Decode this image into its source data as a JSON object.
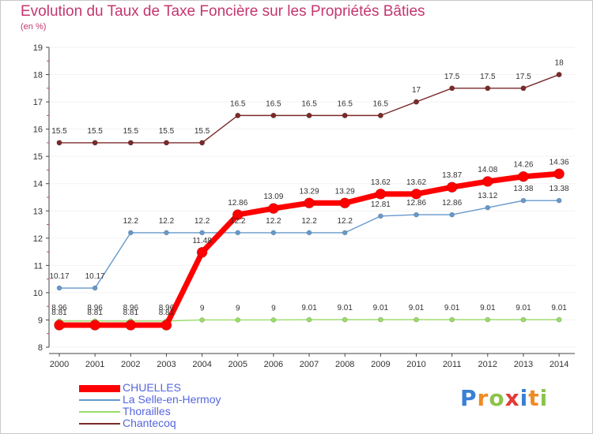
{
  "chart_data": {
    "type": "line",
    "title": "Evolution du Taux de Taxe Foncière sur les Propriétés Bâties",
    "subtitle": "(en %)",
    "xlabel": "",
    "ylabel": "",
    "ylim": [
      8,
      19
    ],
    "yticks": [
      "8",
      "9",
      "10",
      "11",
      "12",
      "13",
      "14",
      "15",
      "16",
      "17",
      "18",
      "19"
    ],
    "categories": [
      "2000",
      "2001",
      "2002",
      "2003",
      "2004",
      "2005",
      "2006",
      "2007",
      "2008",
      "2009",
      "2010",
      "2011",
      "2012",
      "2013",
      "2014"
    ],
    "legend_position": "bottom-left",
    "series": [
      {
        "name": "CHUELLES",
        "color": "#ff0000",
        "values": [
          8.81,
          8.81,
          8.81,
          8.81,
          11.48,
          12.86,
          13.09,
          13.29,
          13.29,
          13.62,
          13.62,
          13.87,
          14.08,
          14.26,
          14.36
        ],
        "labels": [
          "8.81",
          "8.81",
          "8.81",
          "8.81",
          "11.48",
          "12.86",
          "13.09",
          "13.29",
          "13.29",
          "13.62",
          "13.62",
          "13.87",
          "14.08",
          "14.26",
          "14.36"
        ]
      },
      {
        "name": "La Selle-en-Hermoy",
        "color": "#6699cc",
        "values": [
          10.17,
          10.17,
          12.2,
          12.2,
          12.2,
          12.2,
          12.2,
          12.2,
          12.2,
          12.81,
          12.86,
          12.86,
          13.12,
          13.38,
          13.38
        ],
        "labels": [
          "10.17",
          "10.17",
          "12.2",
          "12.2",
          "12.2",
          "12.2",
          "12.2",
          "12.2",
          "12.2",
          "12.81",
          "12.86",
          "12.86",
          "13.12",
          "13.38",
          "13.38"
        ]
      },
      {
        "name": "Thorailles",
        "color": "#99dd66",
        "values": [
          8.96,
          8.96,
          8.96,
          8.96,
          9,
          9,
          9,
          9.01,
          9.01,
          9.01,
          9.01,
          9.01,
          9.01,
          9.01,
          9.01
        ],
        "labels": [
          "8.96",
          "8.96",
          "8.96",
          "8.96",
          "9",
          "9",
          "9",
          "9.01",
          "9.01",
          "9.01",
          "9.01",
          "9.01",
          "9.01",
          "9.01",
          "9.01"
        ]
      },
      {
        "name": "Chantecoq",
        "color": "#7a2a2a",
        "values": [
          15.5,
          15.5,
          15.5,
          15.5,
          15.5,
          16.5,
          16.5,
          16.5,
          16.5,
          16.5,
          17,
          17.5,
          17.5,
          17.5,
          18
        ],
        "labels": [
          "15.5",
          "15.5",
          "15.5",
          "15.5",
          "15.5",
          "16.5",
          "16.5",
          "16.5",
          "16.5",
          "16.5",
          "17",
          "17.5",
          "17.5",
          "17.5",
          "18"
        ]
      }
    ]
  },
  "logo": {
    "text": "Proxiti"
  }
}
